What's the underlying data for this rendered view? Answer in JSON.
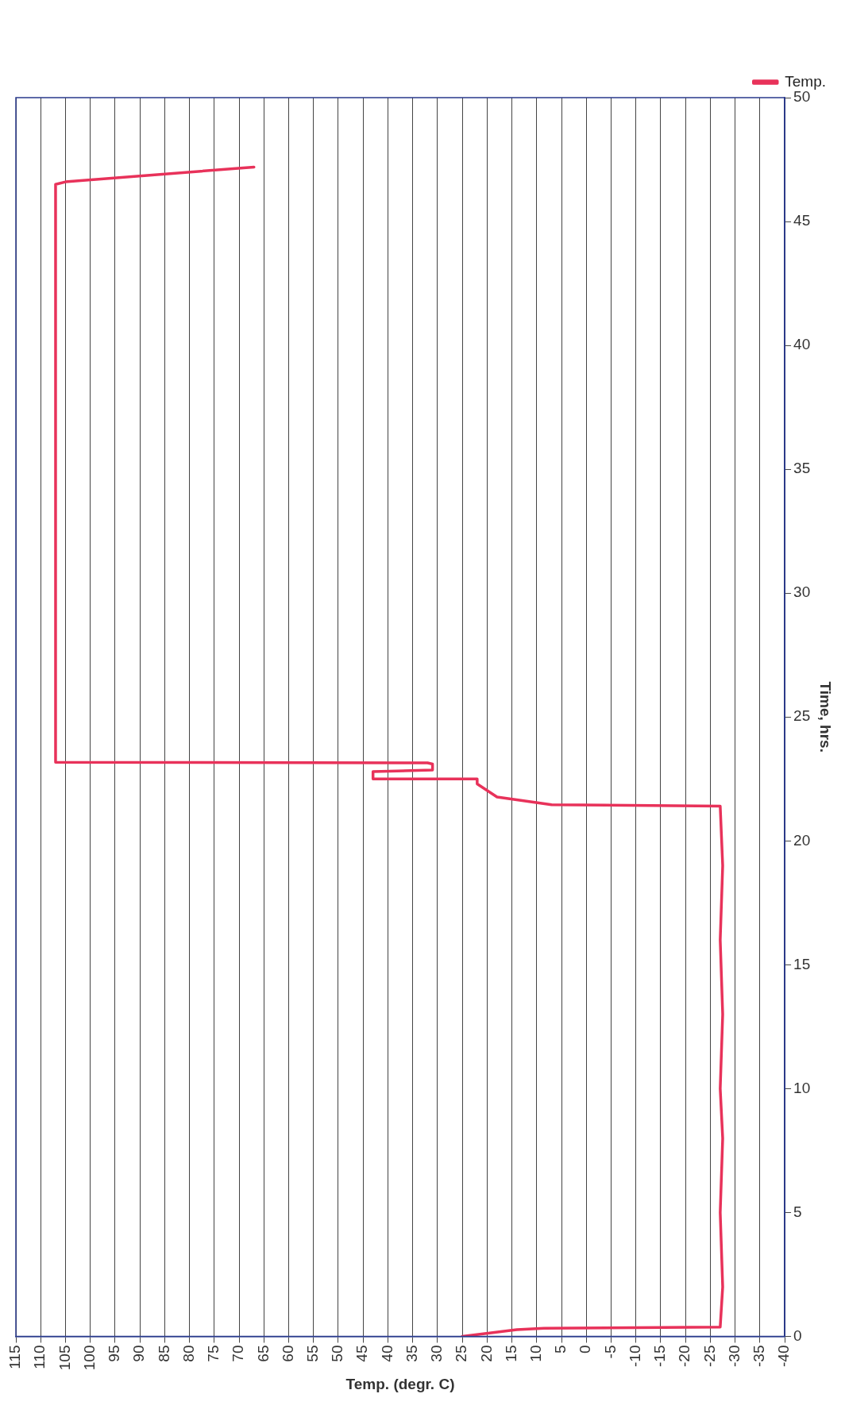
{
  "chart_data": {
    "type": "line",
    "xlabel": "Temp. (degr. C)",
    "ylabel": "Time, hrs.",
    "xlim": [
      115,
      -40
    ],
    "xticks": [
      115,
      110,
      105,
      100,
      95,
      90,
      85,
      80,
      75,
      70,
      65,
      60,
      55,
      50,
      45,
      40,
      35,
      30,
      25,
      20,
      15,
      10,
      5,
      0,
      -5,
      -10,
      -15,
      -20,
      -25,
      -30,
      -35,
      -40
    ],
    "ylim": [
      0,
      50
    ],
    "yticks": [
      0,
      5,
      10,
      15,
      20,
      25,
      30,
      35,
      40,
      45,
      50
    ],
    "grid": "x",
    "legend": "top right",
    "marker": "none",
    "line_style": "solid",
    "x": [
      25,
      14,
      8.5,
      -27,
      -27.5,
      -27,
      -27.5,
      -27,
      -27.5,
      -27,
      -27.5,
      -27,
      7,
      18,
      22,
      22,
      43,
      43,
      31,
      31,
      32,
      107,
      107,
      105,
      67
    ],
    "series": [
      {
        "name": "Temp.",
        "color": "#e8325a",
        "values": [
          0,
          0.27,
          0.33,
          0.38,
          2,
          5,
          8,
          10,
          13,
          16,
          19,
          21.4,
          21.46,
          21.77,
          22.3,
          22.5,
          22.5,
          22.8,
          22.86,
          23.1,
          23.15,
          23.17,
          46.5,
          46.6,
          47.2
        ]
      }
    ]
  }
}
